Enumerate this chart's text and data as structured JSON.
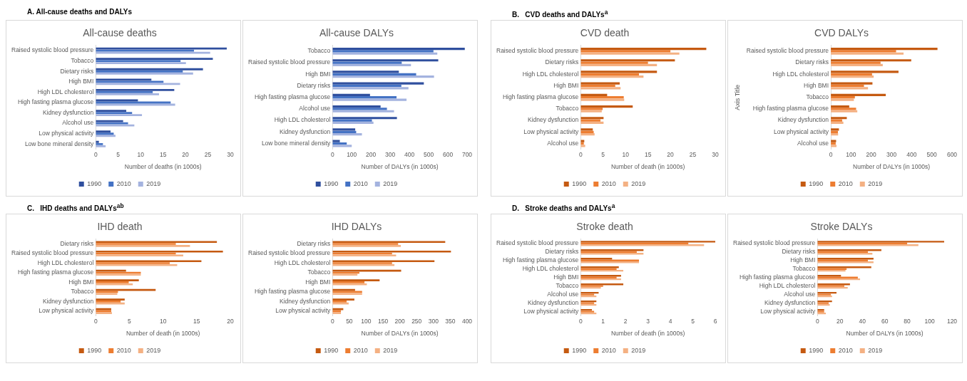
{
  "chart_data": [
    {
      "type": "bar",
      "orientation": "horizontal",
      "title": "All-cause deaths",
      "annotations": [
        "A. All-cause deaths and DALYs"
      ],
      "xlabel": "Number of deaths (in 1000s)",
      "categories": [
        "Raised systolic blood pressure",
        "Tobacco",
        "Dietary risks",
        "High BMI",
        "High LDL cholesterol",
        "High fasting plasma glucose",
        "Kidney dysfunction",
        "Alcohol use",
        "Low physical activity",
        "Low bone mineral density"
      ],
      "xlim": [
        0,
        30
      ],
      "xticks": [
        0,
        5,
        10,
        15,
        20,
        25,
        30
      ],
      "legend": "bottom",
      "grid": false,
      "series": [
        {
          "name": "1990",
          "color": "#2f4f9e",
          "values": [
            29.2,
            26.1,
            23.9,
            12.4,
            17.5,
            9.4,
            6.8,
            6.1,
            3.3,
            0.7
          ]
        },
        {
          "name": "2010",
          "color": "#4472c4",
          "values": [
            21.9,
            18.9,
            19.4,
            15.1,
            12.7,
            16.7,
            8.1,
            7.2,
            4.0,
            1.6
          ]
        },
        {
          "name": "2019",
          "color": "#a4b3df",
          "values": [
            25.5,
            20.1,
            21.7,
            18.8,
            14.1,
            17.7,
            10.3,
            8.6,
            4.4,
            2.2
          ]
        }
      ]
    },
    {
      "type": "bar",
      "orientation": "horizontal",
      "title": "All-cause DALYs",
      "xlabel": "Number of DALYs (in 1000s)",
      "categories": [
        "Tobacco",
        "Raised systolic blood pressure",
        "High BMI",
        "Dietary risks",
        "High fasting plasma glucose",
        "Alcohol use",
        "High LDL cholesterol",
        "Kidney dysfunction",
        "Low bone mineral density"
      ],
      "xlim": [
        0,
        700
      ],
      "xticks": [
        0,
        100,
        200,
        300,
        400,
        500,
        600,
        700
      ],
      "legend": "bottom",
      "grid": false,
      "series": [
        {
          "name": "1990",
          "color": "#2f4f9e",
          "values": [
            688,
            550,
            345,
            475,
            195,
            250,
            335,
            118,
            38
          ]
        },
        {
          "name": "2010",
          "color": "#4472c4",
          "values": [
            525,
            360,
            435,
            358,
            333,
            283,
            205,
            123,
            74
          ]
        },
        {
          "name": "2019",
          "color": "#a4b3df",
          "values": [
            545,
            408,
            528,
            395,
            385,
            320,
            213,
            153,
            100
          ]
        }
      ]
    },
    {
      "type": "bar",
      "orientation": "horizontal",
      "title": "CVD death",
      "annotations": [
        "B.   CVD deaths and DALYs$^{a}$"
      ],
      "xlabel": "Number of death (in 1000s)",
      "categories": [
        "Raised systolic blood pressure",
        "Dietary risks",
        "High LDL cholesterol",
        "High BMI",
        "High fasting plasma glucose",
        "Tobacco",
        "Kidney dysfunction",
        "Low physical activity",
        "Alcohol use"
      ],
      "xlim": [
        0,
        30
      ],
      "xticks": [
        0,
        5,
        10,
        15,
        20,
        25,
        30
      ],
      "legend": "bottom",
      "grid": false,
      "series": [
        {
          "name": "1990",
          "color": "#c55a11",
          "values": [
            28.0,
            21.0,
            17.0,
            8.7,
            5.9,
            11.6,
            5.1,
            2.7,
            0.8
          ]
        },
        {
          "name": "2010",
          "color": "#ed7d31",
          "values": [
            20.0,
            15.0,
            13.0,
            7.7,
            9.6,
            4.9,
            4.4,
            2.9,
            0.7
          ]
        },
        {
          "name": "2019",
          "color": "#f4b183",
          "values": [
            22.0,
            17.0,
            14.0,
            8.9,
            9.7,
            4.7,
            5.1,
            3.1,
            1.0
          ]
        }
      ]
    },
    {
      "type": "bar",
      "orientation": "horizontal",
      "title": "CVD DALYs",
      "xlabel": "Number of DALYs (in 1000s)",
      "ylabel": "Axis Title",
      "categories": [
        "Raised systolic blood pressure",
        "Dietary risks",
        "High LDL cholesterol",
        "High BMI",
        "Tobacco",
        "High fasting plasma glucose",
        "Kidney dysfunction",
        "Low physical activity",
        "Alcohol use"
      ],
      "xlim": [
        0,
        600
      ],
      "xticks": [
        0,
        100,
        200,
        300,
        400,
        500,
        600
      ],
      "legend": "bottom",
      "grid": false,
      "series": [
        {
          "name": "1990",
          "color": "#c55a11",
          "values": [
            528,
            398,
            335,
            206,
            272,
            91,
            79,
            40,
            26
          ]
        },
        {
          "name": "2010",
          "color": "#ed7d31",
          "values": [
            323,
            246,
            204,
            164,
            119,
            125,
            56,
            35,
            24
          ]
        },
        {
          "name": "2019",
          "color": "#f4b183",
          "values": [
            360,
            257,
            212,
            184,
            114,
            131,
            62,
            36,
            28
          ]
        }
      ]
    },
    {
      "type": "bar",
      "orientation": "horizontal",
      "title": "IHD death",
      "annotations": [
        "C.   IHD deaths and DALYs$^{ab}$"
      ],
      "xlabel": "Number of death (in 1000s)",
      "categories": [
        "Dietary risks",
        "Raised systolic blood pressure",
        "High LDL cholesterol",
        "High fasting plasma glucose",
        "High BMI",
        "Tobacco",
        "Kidney dysfunction",
        "Low physical activity"
      ],
      "xlim": [
        0,
        20
      ],
      "xticks": [
        0,
        5,
        10,
        15,
        20
      ],
      "legend": "bottom",
      "grid": false,
      "series": [
        {
          "name": "1990",
          "color": "#c55a11",
          "values": [
            18.0,
            18.9,
            15.7,
            4.5,
            6.4,
            8.9,
            4.3,
            2.3
          ]
        },
        {
          "name": "2010",
          "color": "#ed7d31",
          "values": [
            11.9,
            11.9,
            11.0,
            6.7,
            4.9,
            3.3,
            3.7,
            2.3
          ]
        },
        {
          "name": "2019",
          "color": "#f4b183",
          "values": [
            14.0,
            13.0,
            12.1,
            6.7,
            5.5,
            3.2,
            4.3,
            2.4
          ]
        }
      ]
    },
    {
      "type": "bar",
      "orientation": "horizontal",
      "title": "IHD DALYs",
      "xlabel": "Number of DALYs (in 1000s)",
      "categories": [
        "Dietary risks",
        "Raised systolic blood pressure",
        "High LDL cholesterol",
        "Tobacco",
        "High BMI",
        "High fasting plasma glucose",
        "Kidney dysfunction",
        "Low physical activity"
      ],
      "xlim": [
        0,
        400
      ],
      "xticks": [
        0,
        50,
        100,
        150,
        200,
        250,
        300,
        350,
        400
      ],
      "legend": "bottom",
      "grid": false,
      "series": [
        {
          "name": "1990",
          "color": "#c55a11",
          "values": [
            335,
            352,
            303,
            204,
            140,
            67,
            65,
            32
          ]
        },
        {
          "name": "2010",
          "color": "#ed7d31",
          "values": [
            195,
            177,
            177,
            80,
            95,
            88,
            42,
            25
          ]
        },
        {
          "name": "2019",
          "color": "#f4b183",
          "values": [
            203,
            189,
            184,
            74,
            102,
            88,
            48,
            25
          ]
        }
      ]
    },
    {
      "type": "bar",
      "orientation": "horizontal",
      "title": "Stroke death",
      "annotations": [
        "D.   Stroke deaths and DALYs$^{a}$"
      ],
      "xlabel": "Number of death (in 1000s)",
      "categories": [
        "Raised systolic blood pressure",
        "Dietary risks",
        "High fasting plasma glucose",
        "High LDL cholesterol",
        "High BMI",
        "Tobacco",
        "Alcohol use",
        "Kidney dysfunction",
        "Low physical activity"
      ],
      "xlim": [
        0,
        6
      ],
      "xticks": [
        0,
        1,
        2,
        3,
        4,
        5,
        6
      ],
      "legend": "bottom",
      "grid": false,
      "series": [
        {
          "name": "1990",
          "color": "#c55a11",
          "values": [
            6.0,
            2.8,
            1.4,
            1.7,
            1.8,
            1.9,
            0.8,
            0.7,
            0.5
          ]
        },
        {
          "name": "2010",
          "color": "#ed7d31",
          "values": [
            4.8,
            2.5,
            2.6,
            1.6,
            1.6,
            1.0,
            0.6,
            0.6,
            0.6
          ]
        },
        {
          "name": "2019",
          "color": "#f4b183",
          "values": [
            5.5,
            2.8,
            2.6,
            1.9,
            1.8,
            0.9,
            0.7,
            0.7,
            0.7
          ]
        }
      ]
    },
    {
      "type": "bar",
      "orientation": "horizontal",
      "title": "Stroke DALYs",
      "xlabel": "Number of DALYs (in 1000s)",
      "categories": [
        "Raised systolic blood pressure",
        "Dietary risks",
        "High BMI",
        "Tobacco",
        "High fasting plasma glucose",
        "High LDL cholesterol",
        "Alcohol use",
        "Kidney dysfunction",
        "Low physical activity"
      ],
      "xlim": [
        0,
        120
      ],
      "xticks": [
        0,
        20,
        40,
        60,
        80,
        100,
        120
      ],
      "legend": "bottom",
      "grid": false,
      "series": [
        {
          "name": "1990",
          "color": "#c55a11",
          "values": [
            113,
            57,
            50,
            48,
            21,
            29,
            17,
            13,
            6
          ]
        },
        {
          "name": "2010",
          "color": "#ed7d31",
          "values": [
            80,
            45,
            45,
            26,
            36,
            24,
            12,
            10,
            6
          ]
        },
        {
          "name": "2019",
          "color": "#f4b183",
          "values": [
            90,
            49,
            50,
            25,
            38,
            27,
            13,
            11,
            7.5
          ]
        }
      ]
    }
  ]
}
